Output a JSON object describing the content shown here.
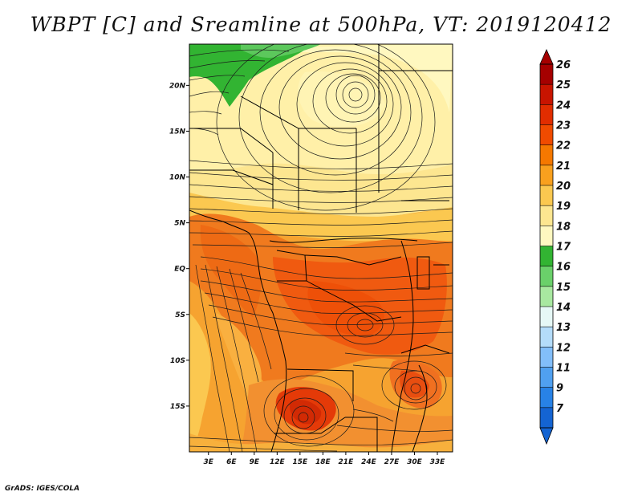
{
  "title": "WBPT [C] and Sreamline at 500hPa, VT: 2019120412",
  "credit": "GrADS: IGES/COLA",
  "map": {
    "lon_labels": [
      "3E",
      "6E",
      "9E",
      "12E",
      "15E",
      "18E",
      "21E",
      "24E",
      "27E",
      "30E",
      "33E"
    ],
    "lon_values": [
      3,
      6,
      9,
      12,
      15,
      18,
      21,
      24,
      27,
      30,
      33
    ],
    "lat_labels": [
      "20N",
      "15N",
      "10N",
      "5N",
      "EQ",
      "5S",
      "10S",
      "15S"
    ],
    "lat_values": [
      20,
      15,
      10,
      5,
      0,
      -5,
      -10,
      -15
    ],
    "lon_range": [
      0.5,
      35
    ],
    "lat_range": [
      -20,
      24.5
    ]
  },
  "colorbar": {
    "levels": [
      "26",
      "25",
      "24",
      "23",
      "22",
      "21",
      "20",
      "19",
      "18",
      "17",
      "16",
      "15",
      "14",
      "13",
      "12",
      "11",
      "9",
      "7"
    ],
    "colors": [
      "#a50000",
      "#c81400",
      "#e12d00",
      "#f04b00",
      "#f57800",
      "#f9a01e",
      "#fbc850",
      "#fde690",
      "#fff8c0",
      "#32b432",
      "#6ad06a",
      "#a8e8a0",
      "#e6f8f6",
      "#b4dcfa",
      "#82befa",
      "#50a0f0",
      "#2882e6",
      "#1464d2"
    ]
  }
}
